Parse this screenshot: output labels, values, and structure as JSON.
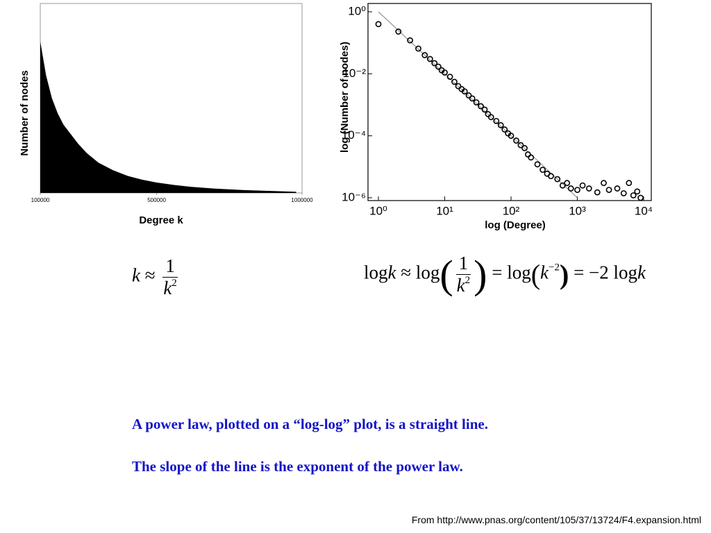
{
  "chart_data": [
    {
      "type": "area",
      "xlabel": "Degree k",
      "ylabel": "Number of nodes",
      "color": "#000000",
      "x": [
        100000,
        120000,
        140000,
        160000,
        180000,
        200000,
        230000,
        260000,
        300000,
        350000,
        400000,
        450000,
        500000,
        560000,
        620000,
        700000,
        800000,
        900000,
        980000
      ],
      "values": [
        0.8,
        0.62,
        0.5,
        0.42,
        0.36,
        0.32,
        0.26,
        0.21,
        0.16,
        0.12,
        0.09,
        0.07,
        0.055,
        0.042,
        0.032,
        0.023,
        0.015,
        0.01,
        0.006
      ],
      "xlim": [
        100000,
        1000000
      ],
      "xticks": [
        100000,
        500000,
        1000000
      ],
      "ylim": [
        0,
        1
      ]
    },
    {
      "type": "scatter",
      "xlabel": "log (Degree)",
      "ylabel": "log (Number of nodes)",
      "color": "#000000",
      "fit_color": "#999999",
      "xlog": true,
      "ylog": true,
      "x": [
        1,
        2,
        3,
        4,
        5,
        6,
        7,
        8,
        9,
        10,
        12,
        14,
        16,
        18,
        20,
        23,
        26,
        30,
        35,
        40,
        45,
        50,
        60,
        70,
        80,
        90,
        100,
        120,
        140,
        160,
        180,
        200,
        250,
        300,
        350,
        400,
        500,
        600,
        700,
        800,
        1000,
        1200,
        1500,
        2000,
        2500,
        3000,
        4000,
        5000,
        6000,
        7000,
        8000,
        9000
      ],
      "values": [
        0.4,
        0.23,
        0.12,
        0.065,
        0.04,
        0.03,
        0.022,
        0.017,
        0.013,
        0.011,
        0.008,
        0.0055,
        0.004,
        0.0032,
        0.0027,
        0.002,
        0.0016,
        0.0012,
        0.0009,
        0.0007,
        0.0005,
        0.0004,
        0.0003,
        0.00022,
        0.00016,
        0.00012,
        0.0001,
        7e-05,
        5e-05,
        4e-05,
        2.5e-05,
        2e-05,
        1.2e-05,
        8e-06,
        6e-06,
        5e-06,
        4e-06,
        2.5e-06,
        3e-06,
        2e-06,
        1.8e-06,
        2.5e-06,
        2e-06,
        1.5e-06,
        3e-06,
        1.8e-06,
        2e-06,
        1.4e-06,
        3e-06,
        1.2e-06,
        1.6e-06,
        1e-06
      ],
      "fit": {
        "x": [
          1,
          1000
        ],
        "values": [
          1,
          1e-06
        ]
      },
      "xlim": [
        1,
        10000
      ],
      "xticks": [
        {
          "value": 1,
          "label": "10⁰"
        },
        {
          "value": 10,
          "label": "10¹"
        },
        {
          "value": 100,
          "label": "10²"
        },
        {
          "value": 1000,
          "label": "10³"
        },
        {
          "value": 10000,
          "label": "10⁴"
        }
      ],
      "ylim": [
        1e-06,
        1
      ],
      "yticks": [
        {
          "value": 1e-06,
          "label": "10⁻⁶"
        },
        {
          "value": 0.0001,
          "label": "10⁻⁴"
        },
        {
          "value": 0.01,
          "label": "10⁻²"
        },
        {
          "value": 1,
          "label": "10⁰"
        }
      ]
    }
  ],
  "formulas": {
    "first": {
      "lhs": "k",
      "approx": "≈",
      "num": "1",
      "den": "k",
      "exp": "2"
    },
    "second": {
      "a": "log",
      "b": "k",
      "c": "≈ log",
      "num": "1",
      "den": "k",
      "exp": "2",
      "d": "= log",
      "e": "k",
      "exp2": "−2",
      "f": "= −2 log",
      "g": "k"
    }
  },
  "captions": [
    "A power law, plotted on a “log-log” plot, is a straight line.",
    "The slope of the line is the exponent of the power law."
  ],
  "source": "From http://www.pnas.org/content/105/37/13724/F4.expansion.html"
}
